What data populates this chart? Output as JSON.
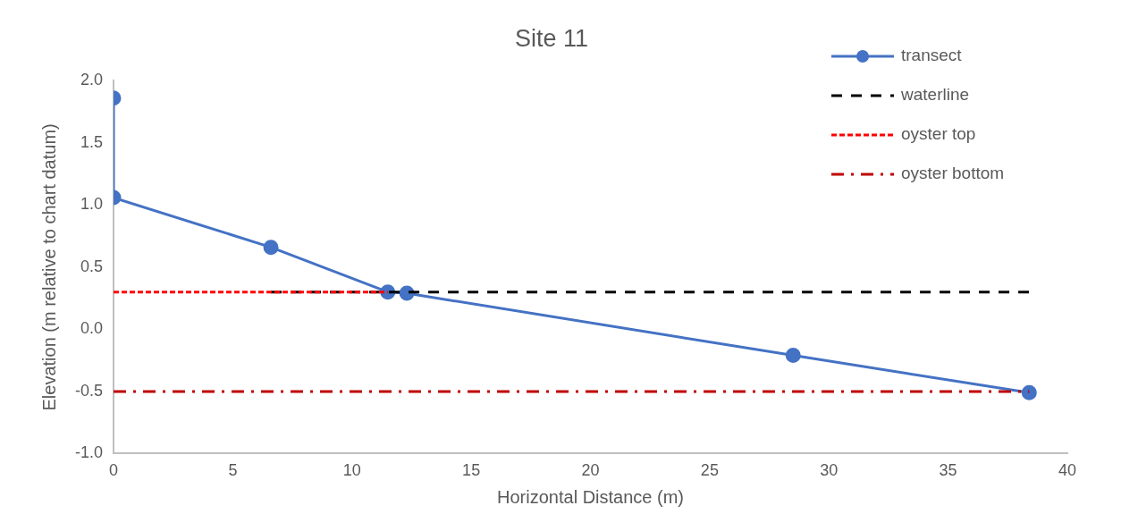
{
  "chart_data": {
    "type": "line",
    "title": "Site 11",
    "xlabel": "Horizontal Distance (m)",
    "ylabel": "Elevation (m relative to chart datum)",
    "xlim": [
      0,
      40
    ],
    "xticks": [
      0,
      5,
      10,
      15,
      20,
      25,
      30,
      35,
      40
    ],
    "ylim": [
      -1,
      2
    ],
    "yticks": [
      {
        "value": -1,
        "label": "-1.0"
      },
      {
        "value": -0.5,
        "label": "-0.5"
      },
      {
        "value": 0,
        "label": "0.0"
      },
      {
        "value": 0.5,
        "label": "0.5"
      },
      {
        "value": 1,
        "label": "1.0"
      },
      {
        "value": 1.5,
        "label": "1.5"
      },
      {
        "value": 2,
        "label": "2.0"
      }
    ],
    "grid": false,
    "legend": "top right",
    "series": [
      {
        "name": "transect",
        "color": "#4472c4",
        "marker": "circle",
        "line_style": "solid",
        "x": [
          0,
          0,
          6.6,
          11.5,
          12.3,
          28.5,
          38.4
        ],
        "values": [
          1.86,
          1.06,
          0.66,
          0.3,
          0.29,
          -0.21,
          -0.51
        ]
      },
      {
        "name": "waterline",
        "color": "#000000",
        "marker": "none",
        "line_style": "dashed",
        "x": [
          6.6,
          38.4
        ],
        "values": [
          0.3,
          0.3
        ]
      },
      {
        "name": "oyster top",
        "color": "#ff0000",
        "marker": "none",
        "line_style": "dotted",
        "x": [
          0,
          11.5
        ],
        "values": [
          0.3,
          0.3
        ]
      },
      {
        "name": "oyster bottom",
        "color": "#c00000",
        "marker": "none",
        "line_style": "dashdot",
        "x": [
          0,
          38.4
        ],
        "values": [
          -0.5,
          -0.5
        ]
      }
    ]
  }
}
